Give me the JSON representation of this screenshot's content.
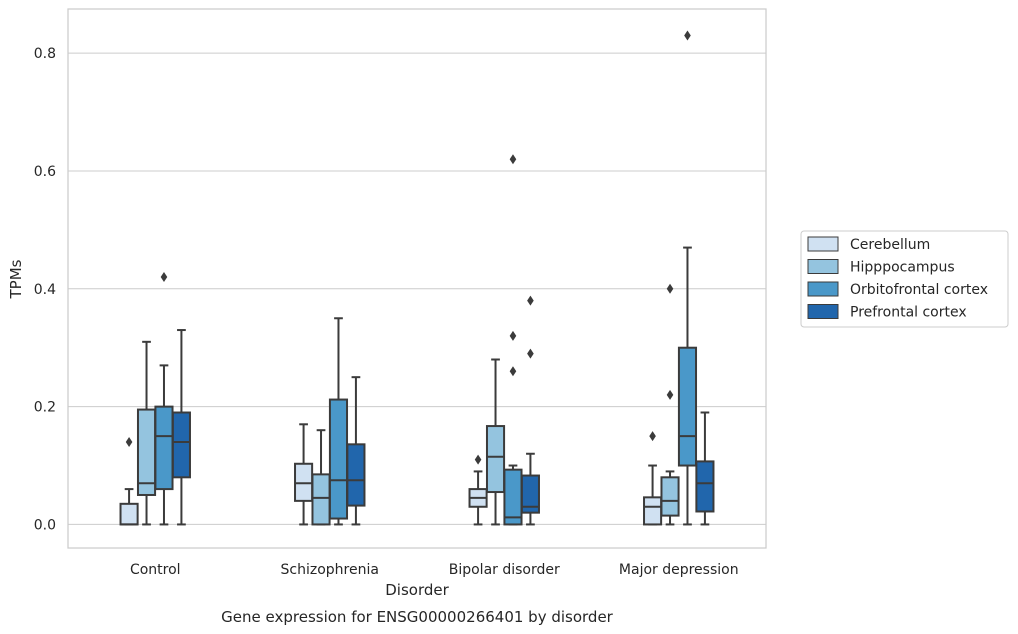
{
  "chart_data": {
    "type": "box",
    "title": "",
    "caption": "Gene expression for ENSG00000266401 by disorder",
    "xlabel": "Disorder",
    "ylabel": "TPMs",
    "ylim": [
      -0.04,
      0.875
    ],
    "yticks": [
      "0.0",
      "0.2",
      "0.4",
      "0.6",
      "0.8"
    ],
    "ytick_values": [
      0.0,
      0.2,
      0.4,
      0.6,
      0.8
    ],
    "grid": "horizontal",
    "legend_position": "right",
    "categories": [
      "Control",
      "Schizophrenia",
      "Bipolar disorder",
      "Major depression"
    ],
    "series": [
      {
        "name": "Cerebellum",
        "color": "#d0e1f2",
        "boxes": [
          {
            "whislo": 0.0,
            "q1": 0.0,
            "med": 0.0,
            "q3": 0.035,
            "whishi": 0.06,
            "fliers": [
              0.14
            ]
          },
          {
            "whislo": 0.0,
            "q1": 0.04,
            "med": 0.07,
            "q3": 0.103,
            "whishi": 0.17,
            "fliers": []
          },
          {
            "whislo": 0.0,
            "q1": 0.03,
            "med": 0.045,
            "q3": 0.06,
            "whishi": 0.09,
            "fliers": [
              0.11
            ]
          },
          {
            "whislo": 0.0,
            "q1": 0.0,
            "med": 0.03,
            "q3": 0.046,
            "whishi": 0.1,
            "fliers": [
              0.15
            ]
          }
        ]
      },
      {
        "name": "Hipppocampus",
        "color": "#94c4df",
        "boxes": [
          {
            "whislo": 0.0,
            "q1": 0.05,
            "med": 0.07,
            "q3": 0.195,
            "whishi": 0.31,
            "fliers": []
          },
          {
            "whislo": 0.0,
            "q1": 0.0,
            "med": 0.045,
            "q3": 0.085,
            "whishi": 0.16,
            "fliers": []
          },
          {
            "whislo": 0.0,
            "q1": 0.055,
            "med": 0.115,
            "q3": 0.167,
            "whishi": 0.28,
            "fliers": []
          },
          {
            "whislo": 0.0,
            "q1": 0.015,
            "med": 0.04,
            "q3": 0.08,
            "whishi": 0.09,
            "fliers": [
              0.22,
              0.4
            ]
          }
        ]
      },
      {
        "name": "Orbitofrontal cortex",
        "color": "#4a98c9",
        "boxes": [
          {
            "whislo": 0.0,
            "q1": 0.06,
            "med": 0.15,
            "q3": 0.2,
            "whishi": 0.27,
            "fliers": [
              0.42
            ]
          },
          {
            "whislo": 0.0,
            "q1": 0.01,
            "med": 0.075,
            "q3": 0.212,
            "whishi": 0.35,
            "fliers": []
          },
          {
            "whislo": 0.0,
            "q1": 0.0,
            "med": 0.012,
            "q3": 0.093,
            "whishi": 0.1,
            "fliers": [
              0.26,
              0.32,
              0.62
            ]
          },
          {
            "whislo": 0.0,
            "q1": 0.1,
            "med": 0.15,
            "q3": 0.3,
            "whishi": 0.47,
            "fliers": [
              0.83
            ]
          }
        ]
      },
      {
        "name": "Prefrontal cortex",
        "color": "#2166ac",
        "boxes": [
          {
            "whislo": 0.0,
            "q1": 0.08,
            "med": 0.14,
            "q3": 0.19,
            "whishi": 0.33,
            "fliers": []
          },
          {
            "whislo": 0.0,
            "q1": 0.032,
            "med": 0.075,
            "q3": 0.136,
            "whishi": 0.25,
            "fliers": []
          },
          {
            "whislo": 0.0,
            "q1": 0.02,
            "med": 0.03,
            "q3": 0.083,
            "whishi": 0.12,
            "fliers": [
              0.29,
              0.38
            ]
          },
          {
            "whislo": 0.0,
            "q1": 0.022,
            "med": 0.07,
            "q3": 0.107,
            "whishi": 0.19,
            "fliers": []
          }
        ]
      }
    ]
  }
}
